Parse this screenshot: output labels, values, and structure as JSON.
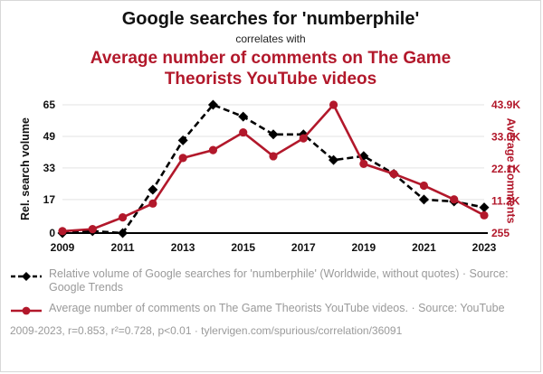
{
  "header": {
    "title": "Google searches for 'numberphile'",
    "subtitle": "correlates with",
    "secondary_title": "Average number of comments on The Game Theorists YouTube videos"
  },
  "colors": {
    "accent_red": "#b2182b",
    "black": "#111111",
    "muted_gray": "#9a9a9a",
    "grid_gray": "#e3e3e3"
  },
  "chart_data": {
    "type": "line",
    "x": [
      2009,
      2010,
      2011,
      2012,
      2013,
      2014,
      2015,
      2016,
      2017,
      2018,
      2019,
      2020,
      2021,
      2022,
      2023
    ],
    "x_ticks": [
      2009,
      2011,
      2013,
      2015,
      2017,
      2019,
      2021,
      2023
    ],
    "left_axis": {
      "label": "Rel. search volume",
      "ticks": [
        0,
        17,
        33,
        49,
        65
      ],
      "min": 0,
      "max": 65,
      "color": "#111111"
    },
    "right_axis": {
      "label": "Average Comments",
      "ticks": [
        "255",
        "11.2K",
        "22.1K",
        "33.0K",
        "43.9K"
      ],
      "min": 255,
      "max": 43900,
      "color": "#b2182b"
    },
    "grid": true,
    "series": [
      {
        "name": "Relative volume of Google searches for 'numberphile'",
        "axis": "left",
        "color": "#000000",
        "line_style": "dashed",
        "marker": "diamond",
        "values": [
          0,
          1,
          0,
          22,
          47,
          65,
          59,
          50,
          50,
          37,
          39,
          30,
          17,
          16,
          13
        ]
      },
      {
        "name": "Average number of comments on The Game Theorists YouTube videos",
        "axis": "right",
        "color": "#b2182b",
        "line_style": "solid",
        "marker": "circle",
        "values": [
          900,
          1600,
          5600,
          10300,
          25800,
          28500,
          34500,
          26400,
          32500,
          43900,
          23800,
          20400,
          16400,
          11700,
          6300
        ]
      }
    ]
  },
  "legend": [
    {
      "text": "Relative volume of Google searches for 'numberphile' (Worldwide, without quotes) · Source: Google Trends"
    },
    {
      "text": "Average number of comments on The Game Theorists YouTube videos. · Source: YouTube"
    }
  ],
  "footer": "2009-2023, r=0.853, r²=0.728, p<0.01 · tylervigen.com/spurious/correlation/36091"
}
